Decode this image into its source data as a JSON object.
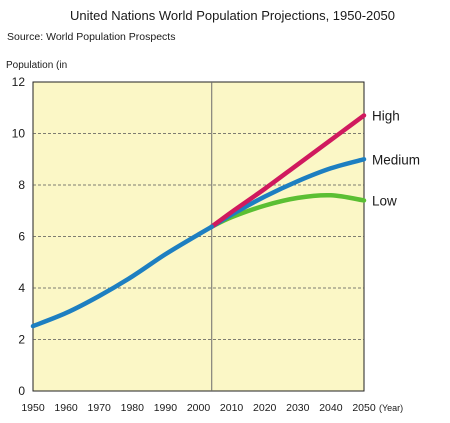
{
  "chart_data": {
    "type": "line",
    "title": "United Nations World Population Projections, 1950-2050",
    "subtitle": "Source: World Population Prospects",
    "ylabel": "Population (in",
    "xunit": "(Year)",
    "xlim": [
      1950,
      2050
    ],
    "ylim": [
      0,
      12
    ],
    "xticks": [
      "1950",
      "1960",
      "1970",
      "1980",
      "1990",
      "2000",
      "2010",
      "2020",
      "2030",
      "2040",
      "2050"
    ],
    "yticks": [
      "0",
      "2",
      "4",
      "6",
      "8",
      "10",
      "12"
    ],
    "grid": true,
    "divider_year": 2004,
    "colors": {
      "background": "#fbf7c6",
      "historical": "#1d7fc1",
      "high": "#d01a5e",
      "medium": "#1d7fc1",
      "low": "#5bbf33"
    },
    "historical": {
      "x": [
        1950,
        1960,
        1970,
        1980,
        1990,
        2000,
        2004
      ],
      "y": [
        2.52,
        3.03,
        3.69,
        4.45,
        5.31,
        6.08,
        6.38
      ]
    },
    "series": [
      {
        "name": "High",
        "x": [
          2004,
          2010,
          2020,
          2030,
          2040,
          2050
        ],
        "y": [
          6.38,
          6.95,
          7.85,
          8.8,
          9.75,
          10.7
        ]
      },
      {
        "name": "Medium",
        "x": [
          2004,
          2010,
          2020,
          2030,
          2040,
          2050
        ],
        "y": [
          6.38,
          6.85,
          7.55,
          8.15,
          8.65,
          9.0
        ]
      },
      {
        "name": "Low",
        "x": [
          2004,
          2010,
          2020,
          2030,
          2040,
          2050
        ],
        "y": [
          6.38,
          6.75,
          7.2,
          7.5,
          7.6,
          7.4
        ]
      }
    ]
  }
}
